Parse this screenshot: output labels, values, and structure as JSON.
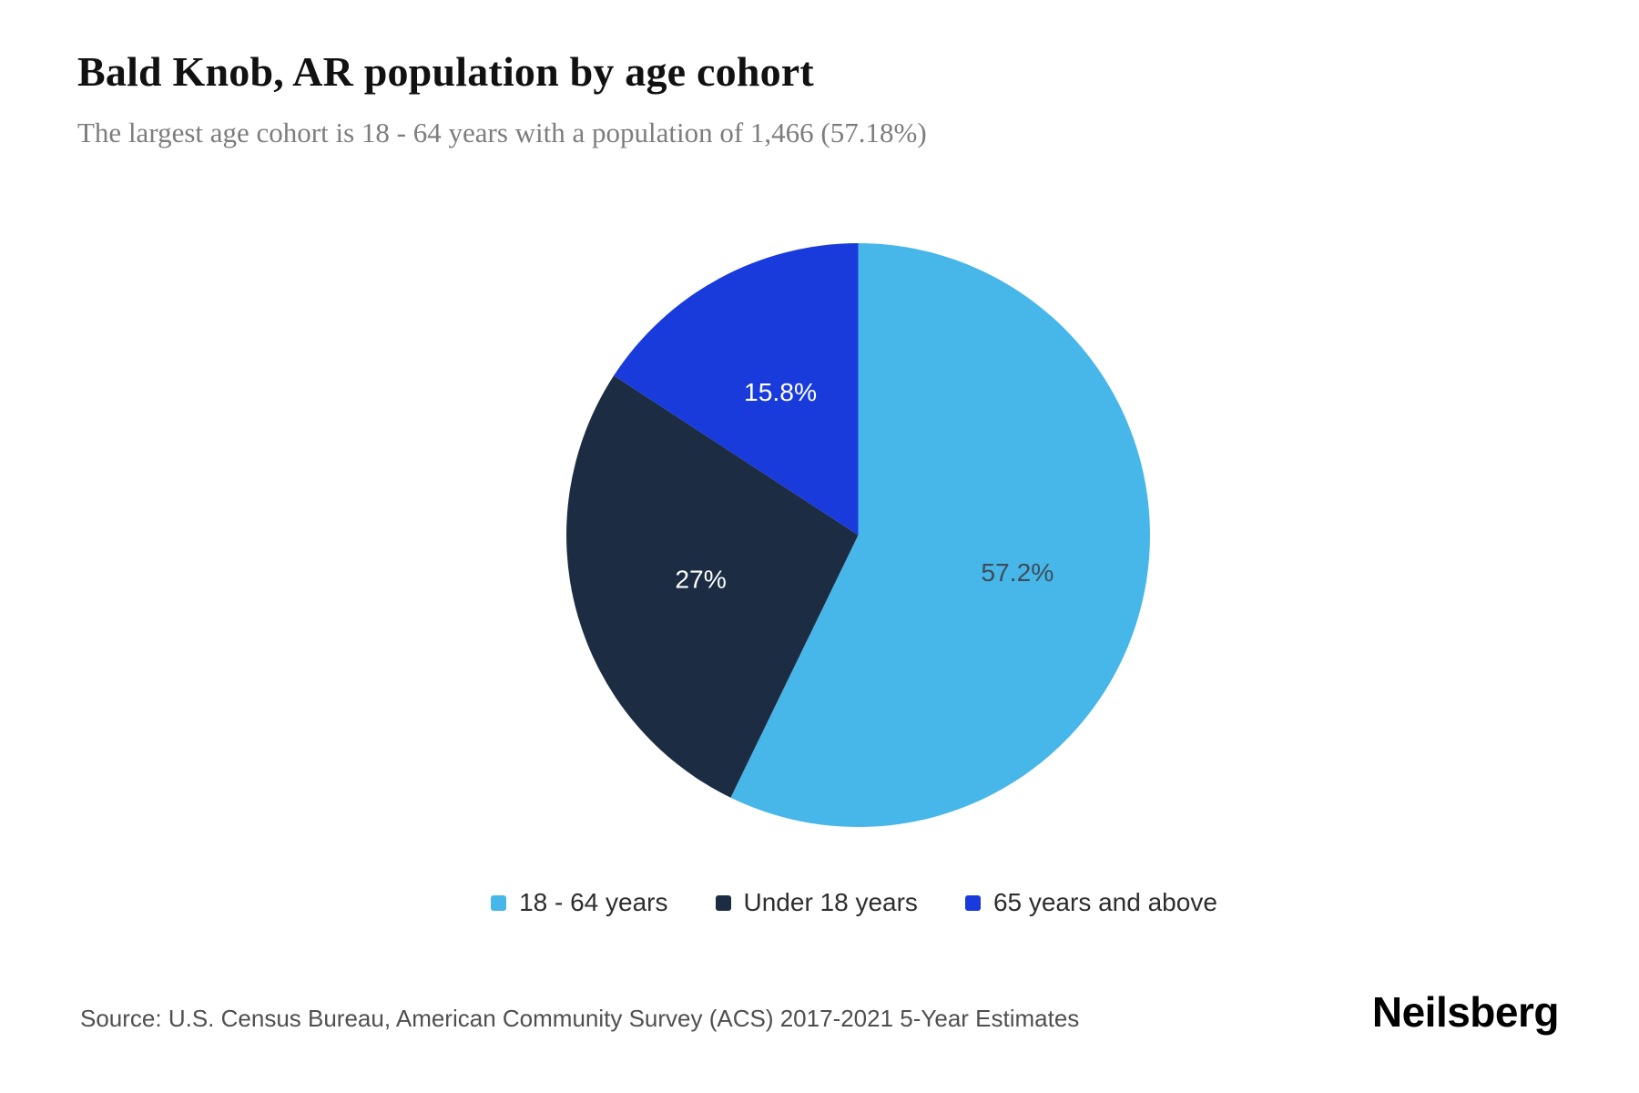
{
  "header": {
    "title": "Bald Knob, AR population by age cohort",
    "subtitle": "The largest age cohort is 18 - 64 years with a population of 1,466 (57.18%)"
  },
  "chart_data": {
    "type": "pie",
    "title": "Bald Knob, AR population by age cohort",
    "start_angle_deg": 0,
    "direction": "clockwise",
    "legend_position": "bottom",
    "slices": [
      {
        "label": "18 - 64 years",
        "value": 57.2,
        "display": "57.2%",
        "color": "#47b6e8",
        "label_color": "#3d4d59"
      },
      {
        "label": "Under 18 years",
        "value": 27.0,
        "display": "27%",
        "color": "#1c2d43",
        "label_color": "#ffffff"
      },
      {
        "label": "65 years and above",
        "value": 15.8,
        "display": "15.8%",
        "color": "#1a3bdb",
        "label_color": "#ffffff"
      }
    ]
  },
  "footer": {
    "source": "Source: U.S. Census Bureau, American Community Survey (ACS) 2017-2021 5-Year Estimates",
    "brand": "Neilsberg"
  }
}
